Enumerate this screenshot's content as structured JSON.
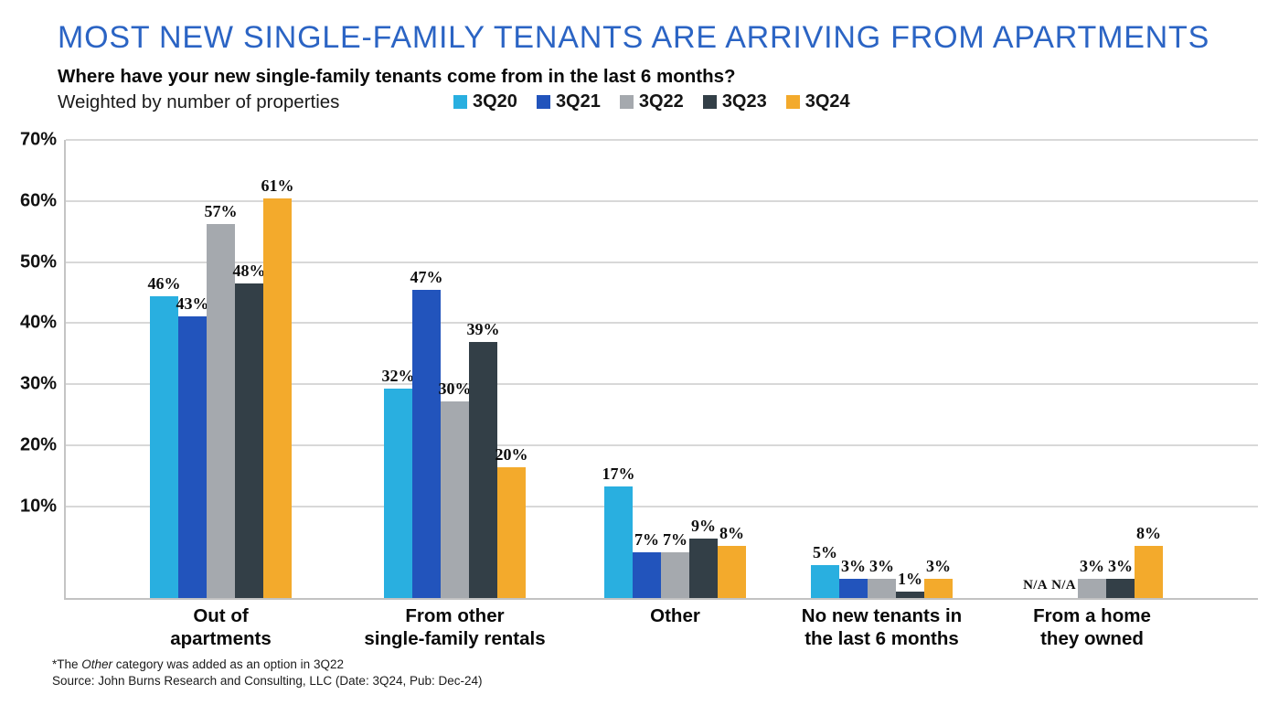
{
  "page": {
    "title": "MOST NEW SINGLE-FAMILY TENANTS ARE ARRIVING FROM APARTMENTS",
    "question": "Where have your new single-family tenants come from in the last 6 months?",
    "weighting_note": "Weighted by number of properties",
    "footnote_prefix": "*The ",
    "footnote_italic": "Other",
    "footnote_rest": " category was added as an option in 3Q22",
    "source": "Source: John Burns Research and Consulting, LLC (Date: 3Q24, Pub: Dec-24)"
  },
  "colors": {
    "title_blue": "#2b64c4",
    "gridline": "#d8d8d8",
    "axis_line": "#c4c4c4",
    "series_3q20": "#29afe0",
    "series_3q21": "#2254bc",
    "series_3q22": "#a5a9ae",
    "series_3q23": "#333f47",
    "series_3q24": "#f3aa2c"
  },
  "chart_data": {
    "type": "bar",
    "title": "Where have your new single-family tenants come from in the last 6 months?",
    "subtitle": "Weighted by number of properties",
    "categories": [
      "Out of\napartments",
      "From other\nsingle-family rentals",
      "Other",
      "No new tenants in\nthe last 6 months",
      "From a home\nthey owned"
    ],
    "series": [
      {
        "name": "3Q20",
        "color": "#29afe0",
        "values": [
          46,
          32,
          17,
          5,
          null
        ],
        "labels": [
          "46%",
          "32%",
          "17%",
          "5%",
          "N/A"
        ]
      },
      {
        "name": "3Q21",
        "color": "#2254bc",
        "values": [
          43,
          47,
          7,
          3,
          null
        ],
        "labels": [
          "43%",
          "47%",
          "7%",
          "3%",
          "N/A"
        ]
      },
      {
        "name": "3Q22",
        "color": "#a5a9ae",
        "values": [
          57,
          30,
          7,
          3,
          3
        ],
        "labels": [
          "57%",
          "30%",
          "7%",
          "3%",
          "3%"
        ]
      },
      {
        "name": "3Q23",
        "color": "#333f47",
        "values": [
          48,
          39,
          9,
          1,
          3
        ],
        "labels": [
          "48%",
          "39%",
          "9%",
          "1%",
          "3%"
        ]
      },
      {
        "name": "3Q24",
        "color": "#f3aa2c",
        "values": [
          61,
          20,
          8,
          3,
          8
        ],
        "labels": [
          "61%",
          "20%",
          "8%",
          "3%",
          "8%"
        ]
      }
    ],
    "xlabel": "",
    "ylabel": "",
    "ylim": [
      0,
      70
    ],
    "yticks": [
      "70%",
      "60%",
      "50%",
      "40%",
      "30%",
      "20%",
      "10%"
    ],
    "grid": true,
    "legend_position": "top"
  }
}
